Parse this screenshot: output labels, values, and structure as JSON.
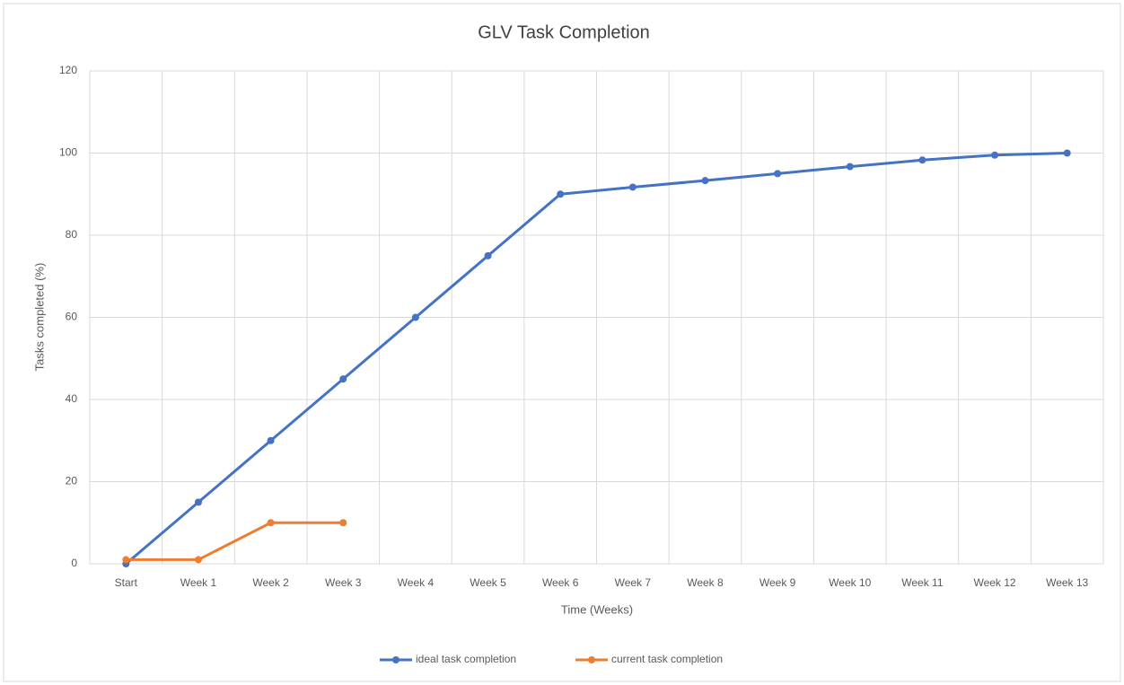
{
  "chart_data": {
    "type": "line",
    "title": "GLV Task Completion",
    "x_label": "Time (Weeks)",
    "y_label": "Tasks completed (%)",
    "categories": [
      "Start",
      "Week 1",
      "Week 2",
      "Week 3",
      "Week 4",
      "Week 5",
      "Week 6",
      "Week 7",
      "Week 8",
      "Week 9",
      "Week 10",
      "Week 11",
      "Week 12",
      "Week 13"
    ],
    "series": [
      {
        "name": "ideal task completion",
        "color": "#4472c4",
        "values": [
          0,
          15,
          30,
          45,
          60,
          75,
          90,
          91.7,
          93.3,
          95,
          96.7,
          98.3,
          99.5,
          100
        ]
      },
      {
        "name": "current task completion",
        "color": "#ed7d31",
        "values": [
          1,
          1,
          10,
          10,
          null,
          null,
          null,
          null,
          null,
          null,
          null,
          null,
          null,
          null
        ]
      }
    ],
    "ylim": [
      0,
      120
    ],
    "yticks": [
      0,
      20,
      40,
      60,
      80,
      100,
      120
    ],
    "grid": true,
    "legend": "bottom"
  }
}
